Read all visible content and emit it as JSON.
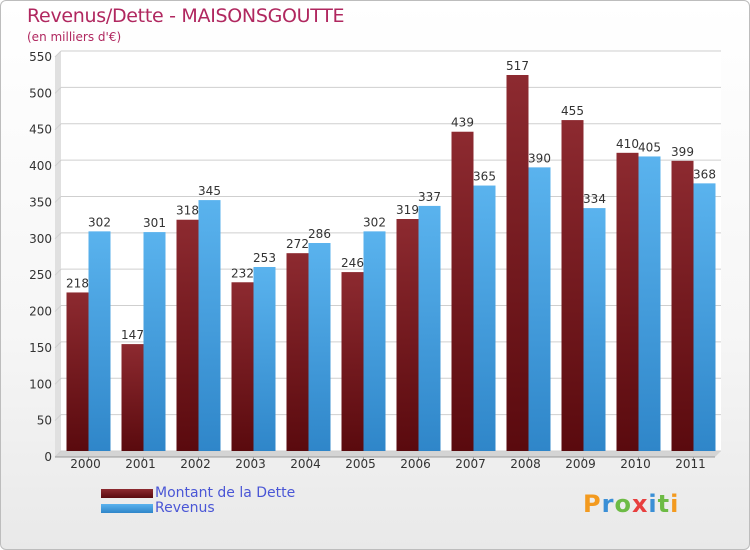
{
  "header": {
    "title": "Revenus/Dette - MAISONSGOUTTE",
    "subtitle": "(en milliers d'€)"
  },
  "legend": {
    "items": [
      {
        "label": "Montant de la Dette",
        "color": "#7a1a1f"
      },
      {
        "label": "Revenus",
        "color": "#4ea8e6"
      }
    ]
  },
  "logo": {
    "letters": [
      "P",
      "r",
      "o",
      "x",
      "i",
      "t",
      "i"
    ],
    "colors": [
      "#f39a1f",
      "#3a8fd6",
      "#6dbb45",
      "#e83f3f",
      "#3a8fd6",
      "#6dbb45",
      "#f39a1f"
    ]
  },
  "chart_data": {
    "type": "bar",
    "title": "Revenus/Dette - MAISONSGOUTTE",
    "ylabel": "(en milliers d'€)",
    "categories": [
      "2000",
      "2001",
      "2002",
      "2003",
      "2004",
      "2005",
      "2006",
      "2007",
      "2008",
      "2009",
      "2010",
      "2011"
    ],
    "series": [
      {
        "name": "Montant de la Dette",
        "color": "#7a1a1f",
        "values": [
          218,
          147,
          318,
          232,
          272,
          246,
          319,
          439,
          517,
          455,
          410,
          399
        ]
      },
      {
        "name": "Revenus",
        "color": "#4ea8e6",
        "values": [
          302,
          301,
          345,
          253,
          286,
          302,
          337,
          365,
          390,
          334,
          405,
          368
        ]
      }
    ],
    "ylim": [
      0,
      550
    ],
    "yticks": [
      0,
      50,
      100,
      150,
      200,
      250,
      300,
      350,
      400,
      450,
      500,
      550
    ],
    "grid": true,
    "legend_position": "bottom-left"
  }
}
